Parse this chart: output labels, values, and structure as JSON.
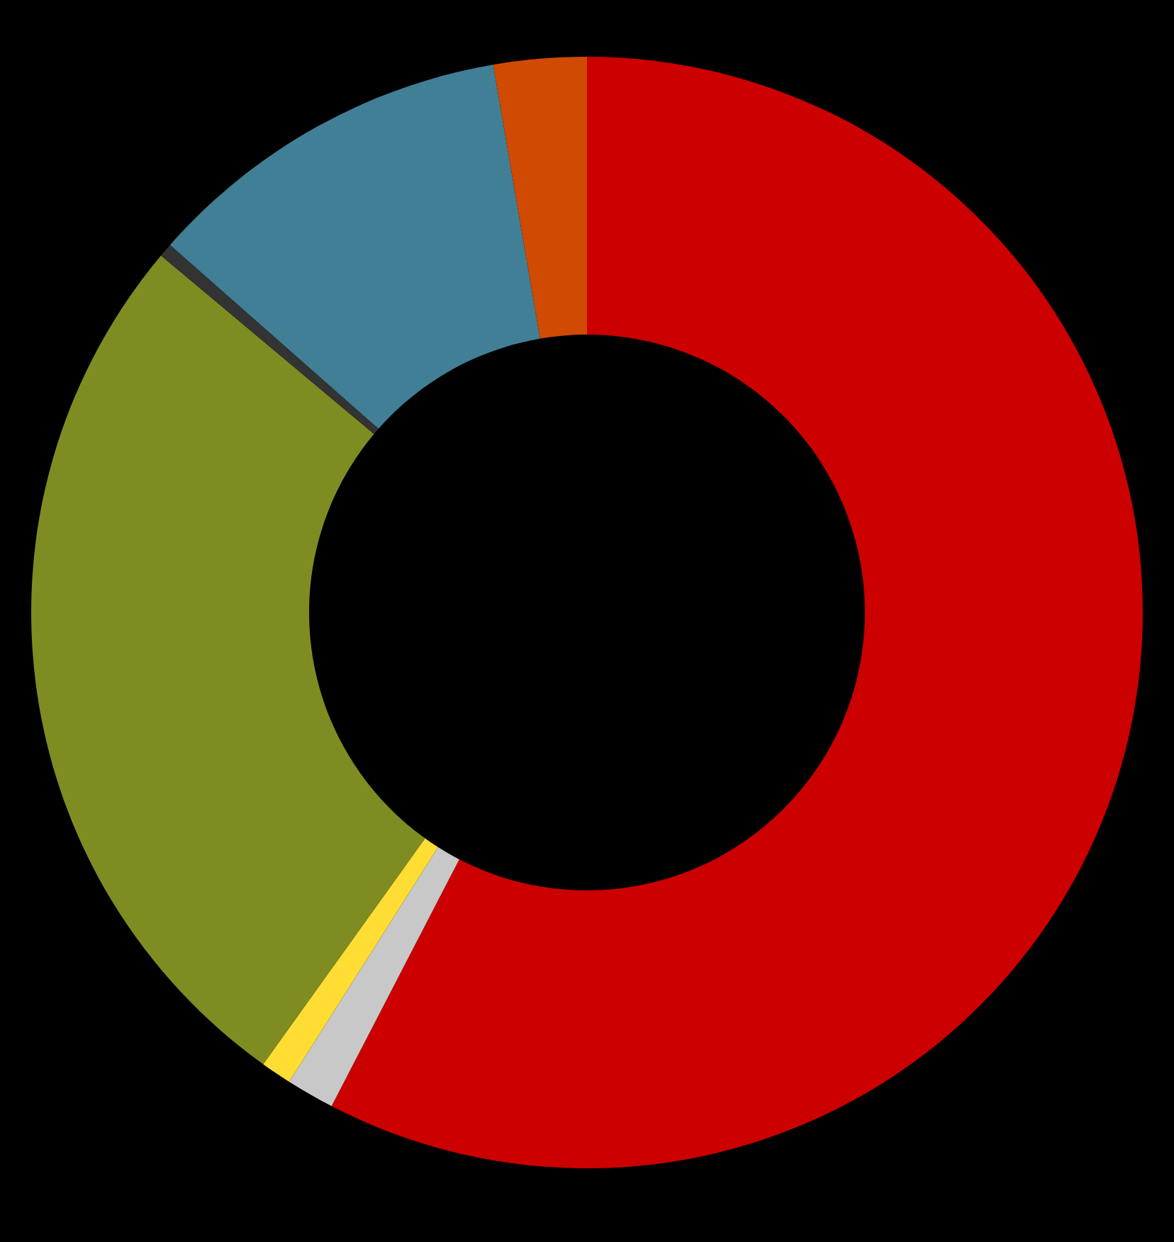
{
  "chart_data": {
    "type": "donut",
    "categories": [
      null,
      null,
      null,
      null,
      null,
      null,
      null
    ],
    "values": [
      57.6,
      1.4,
      0.9,
      26.2,
      0.4,
      10.8,
      2.7
    ],
    "colors": [
      "#cc0000",
      "#c8c8c8",
      "#ffdd33",
      "#7f8c22",
      "#333333",
      "#417f96",
      "#d04a02"
    ]
  }
}
